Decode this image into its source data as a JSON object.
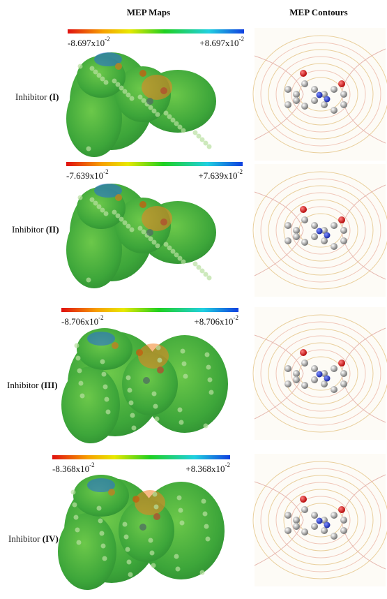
{
  "header": {
    "left": "MEP Maps",
    "right": "MEP Contours"
  },
  "rows": [
    {
      "label": "Inhibitor",
      "numeral": "(I)",
      "min": {
        "mantissa": "-8.697",
        "unit": "x10",
        "exponent": "-2"
      },
      "max": {
        "mantissa": "+8.697",
        "unit": "x10",
        "exponent": "-2"
      }
    },
    {
      "label": "Inhibitor",
      "numeral": "(II)",
      "min": {
        "mantissa": "-7.639",
        "unit": "x10",
        "exponent": "-2"
      },
      "max": {
        "mantissa": "+7.639",
        "unit": "x10",
        "exponent": "-2"
      }
    },
    {
      "label": "Inhibitor",
      "numeral": "(III)",
      "min": {
        "mantissa": "-8.706",
        "unit": "x10",
        "exponent": "-2"
      },
      "max": {
        "mantissa": "+8.706",
        "unit": "x10",
        "exponent": "-2"
      }
    },
    {
      "label": "Inhibitor",
      "numeral": "(IV)",
      "min": {
        "mantissa": "-8.368",
        "unit": "x10",
        "exponent": "-2"
      },
      "max": {
        "mantissa": "+8.368",
        "unit": "x10",
        "exponent": "-2"
      }
    }
  ]
}
